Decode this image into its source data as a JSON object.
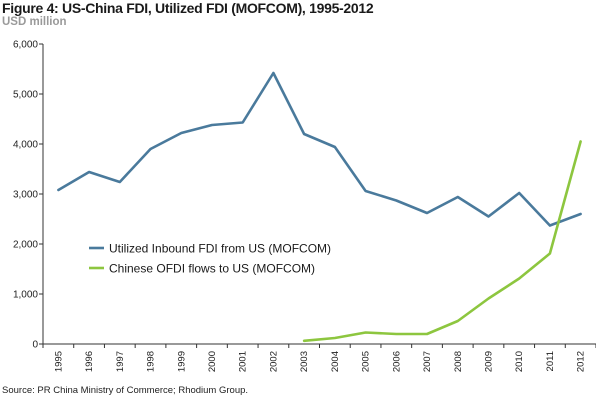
{
  "header": {
    "title": "Figure 4: US-China FDI, Utilized FDI (MOFCOM), 1995-2012",
    "subtitle": "USD million"
  },
  "footer": {
    "source": "Source: PR China Ministry of Commerce; Rhodium Group."
  },
  "colors": {
    "inbound": "#4a7a9c",
    "ofdi": "#8dc63f",
    "axis": "#333333"
  },
  "chart_data": {
    "type": "line",
    "title": "Figure 4: US-China FDI, Utilized FDI (MOFCOM), 1995-2012",
    "ylabel": "USD million",
    "xlabel": "",
    "ylim": [
      0,
      6000
    ],
    "yticks": [
      0,
      1000,
      2000,
      3000,
      4000,
      5000,
      6000
    ],
    "ytick_labels": [
      "0",
      "1,000",
      "2,000",
      "3,000",
      "4,000",
      "5,000",
      "6,000"
    ],
    "x": [
      "1995",
      "1996",
      "1997",
      "1998",
      "1999",
      "2000",
      "2001",
      "2002",
      "2003",
      "2004",
      "2005",
      "2006",
      "2007",
      "2008",
      "2009",
      "2010",
      "2011",
      "2012"
    ],
    "grid": false,
    "legend_position": "lower-left",
    "series": [
      {
        "name": "Utilized Inbound FDI from US (MOFCOM)",
        "values": [
          3080,
          3440,
          3240,
          3900,
          4220,
          4380,
          4430,
          5420,
          4200,
          3940,
          3060,
          2870,
          2620,
          2940,
          2550,
          3020,
          2370,
          2600
        ]
      },
      {
        "name": "Chinese OFDI flows to US (MOFCOM)",
        "values": [
          null,
          null,
          null,
          null,
          null,
          null,
          null,
          null,
          65,
          120,
          230,
          200,
          200,
          460,
          910,
          1310,
          1810,
          4050
        ]
      }
    ]
  }
}
